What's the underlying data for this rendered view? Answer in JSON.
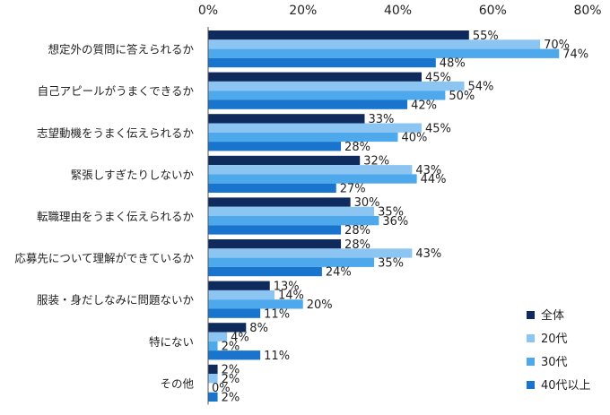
{
  "chart_data": {
    "type": "bar",
    "orientation": "horizontal",
    "xlim": [
      0,
      80
    ],
    "x_ticks": [
      "0%",
      "20%",
      "40%",
      "60%",
      "80%"
    ],
    "x_tick_values": [
      0,
      20,
      40,
      60,
      80
    ],
    "categories": [
      "想定外の質問に答えられるか",
      "自己アピールがうまくできるか",
      "志望動機をうまく伝えられるか",
      "緊張しすぎたりしないか",
      "転職理由をうまく伝えられるか",
      "応募先について理解ができているか",
      "服装・身だしなみに問題ないか",
      "特にない",
      "その他"
    ],
    "series": [
      {
        "name": "全体",
        "color": "#0f2a5c",
        "values": [
          55,
          45,
          33,
          32,
          30,
          28,
          13,
          8,
          2
        ]
      },
      {
        "name": "20代",
        "color": "#8cc4f2",
        "values": [
          70,
          54,
          45,
          43,
          35,
          43,
          14,
          4,
          2
        ]
      },
      {
        "name": "30代",
        "color": "#4ea8ec",
        "values": [
          74,
          50,
          40,
          44,
          36,
          35,
          20,
          2,
          0
        ]
      },
      {
        "name": "40代以上",
        "color": "#1874cd",
        "values": [
          48,
          42,
          28,
          27,
          28,
          24,
          11,
          11,
          2
        ]
      }
    ],
    "value_suffix": "%",
    "legend_position": "bottom-right",
    "grid": false
  }
}
